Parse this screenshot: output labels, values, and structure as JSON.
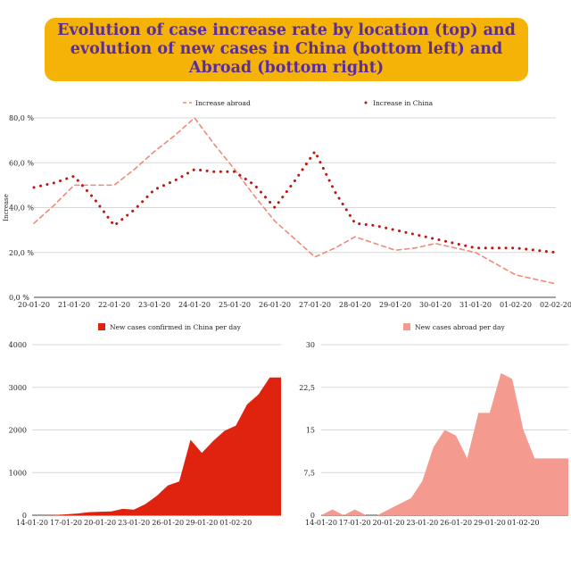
{
  "header": {
    "title": "Evolution of case increase rate by location (top) and evolution of new cases in China (bottom left) and Abroad (bottom right)",
    "background": "#f5b307",
    "text_color": "#5a2d9a"
  },
  "chart_data": [
    {
      "type": "line",
      "categories": [
        "20-01-20",
        "21-01-20",
        "22-01-20",
        "23-01-20",
        "24-01-20",
        "25-01-20",
        "26-01-20",
        "27-01-20",
        "28-01-20",
        "29-01-20",
        "30-01-20",
        "31-01-20",
        "01-02-20",
        "02-02-20"
      ],
      "y_tick_labels": [
        "0,0 %",
        "20,0 %",
        "40,0 %",
        "60,0 %",
        "80,0 %"
      ],
      "ylabel": "Increase",
      "ylim": [
        0,
        80
      ],
      "grid": true,
      "legend_position": "top",
      "series": [
        {
          "name": "Increase abroad",
          "style": "dashed",
          "color": "#f0897a",
          "x": [
            0,
            0.5,
            1,
            1.5,
            2,
            2.5,
            3,
            3.5,
            4,
            4.5,
            5,
            5.5,
            6,
            6.5,
            7,
            7.5,
            8,
            8.5,
            9,
            9.5,
            10,
            10.5,
            11,
            11.5,
            12,
            12.5,
            13
          ],
          "values": [
            33,
            41,
            50,
            50,
            50,
            57,
            65,
            72,
            80,
            68,
            57,
            45,
            34,
            26,
            18,
            22,
            27,
            24,
            21,
            22,
            24,
            22,
            20,
            15,
            10,
            8,
            6
          ]
        },
        {
          "name": "Increase in China",
          "style": "dotted",
          "color": "#c0160f",
          "x": [
            0,
            0.5,
            1,
            1.5,
            2,
            2.5,
            3,
            3.5,
            4,
            4.5,
            5,
            5.5,
            6,
            6.5,
            7,
            7.5,
            8,
            8.5,
            9,
            9.5,
            10,
            10.5,
            11,
            11.5,
            12,
            12.5,
            13
          ],
          "values": [
            49,
            51,
            54,
            44,
            32,
            39,
            48,
            52,
            57,
            56,
            56,
            50,
            40,
            52,
            65,
            47,
            33,
            32,
            30,
            28,
            26,
            24,
            22,
            22,
            22,
            21,
            20
          ]
        }
      ]
    },
    {
      "type": "area",
      "categories": [
        "14-01-20",
        "17-01-20",
        "20-01-20",
        "23-01-20",
        "26-01-20",
        "29-01-20",
        "01-02-20"
      ],
      "y_tick_labels": [
        "0",
        "1000",
        "2000",
        "3000",
        "4000"
      ],
      "ylim": [
        0,
        4000
      ],
      "grid": true,
      "legend_position": "top",
      "series": [
        {
          "name": "New cases confirmed in China per day",
          "color": "#e0230f",
          "x": [
            0,
            1,
            2,
            3,
            4,
            5,
            6,
            7,
            8,
            9,
            10,
            11,
            12,
            13,
            14,
            15,
            16,
            17,
            18,
            19,
            20,
            21,
            22
          ],
          "values": [
            0,
            0,
            5,
            20,
            40,
            70,
            80,
            90,
            150,
            130,
            260,
            450,
            700,
            790,
            1770,
            1460,
            1740,
            1980,
            2100,
            2600,
            2830,
            3230,
            3230
          ]
        }
      ]
    },
    {
      "type": "area",
      "categories": [
        "14-01-20",
        "17-01-20",
        "20-01-20",
        "23-01-20",
        "26-01-20",
        "29-01-20",
        "01-02-20"
      ],
      "y_tick_labels": [
        "0",
        "7,5",
        "15",
        "22,5",
        "30"
      ],
      "ylim": [
        0,
        30
      ],
      "grid": true,
      "legend_position": "top",
      "series": [
        {
          "name": "New cases abroad per day",
          "color": "#f49a8f",
          "x": [
            0,
            1,
            2,
            3,
            4,
            5,
            6,
            7,
            8,
            9,
            10,
            11,
            12,
            13,
            14,
            15,
            16,
            17,
            18,
            19,
            20,
            21,
            22
          ],
          "values": [
            0,
            1,
            0,
            1,
            0,
            0,
            1,
            2,
            3,
            6,
            12,
            15,
            14,
            10,
            18,
            18,
            25,
            24,
            15,
            10,
            10,
            10,
            10
          ]
        }
      ]
    }
  ]
}
